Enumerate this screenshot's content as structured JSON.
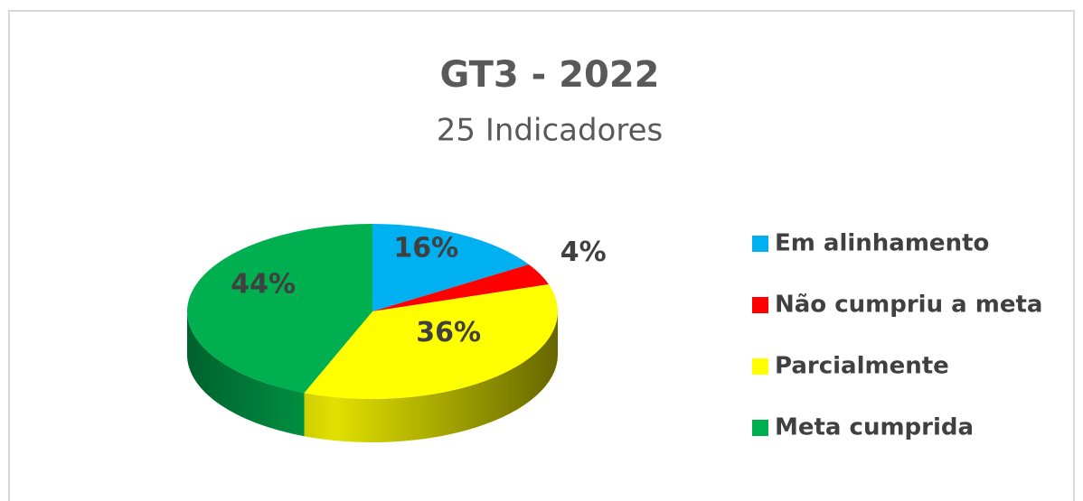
{
  "chart_data": {
    "type": "pie",
    "title": "GT3 - 2022",
    "subtitle": "25 Indicadores",
    "categories": [
      "Em alinhamento",
      "Não cumpriu a meta",
      "Parcialmente",
      "Meta cumprida"
    ],
    "values": [
      16,
      4,
      36,
      44
    ],
    "value_labels": [
      "16%",
      "4%",
      "36%",
      "44%"
    ],
    "colors": [
      "#00b0f0",
      "#ff0000",
      "#ffff00",
      "#00b050"
    ],
    "legend": "right"
  }
}
